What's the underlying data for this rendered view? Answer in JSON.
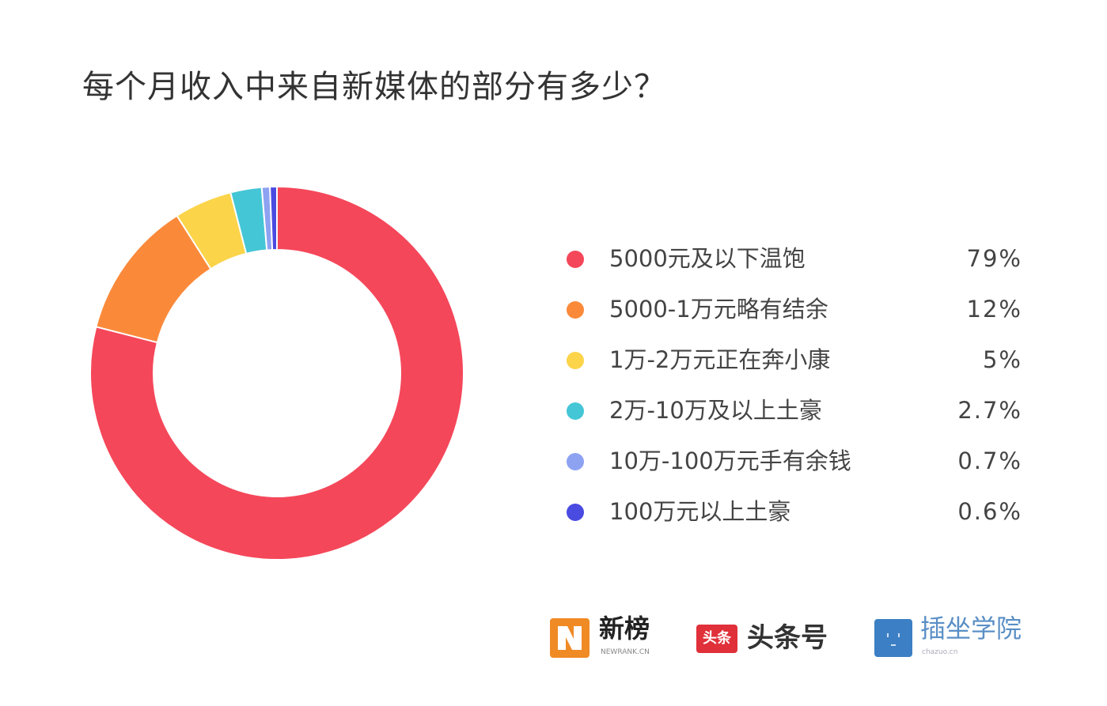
{
  "chart_data": {
    "type": "pie",
    "title": "每个月收入中来自新媒体的部分有多少？",
    "donut": true,
    "legend_position": "right",
    "slices": [
      {
        "label": "5000元及以下温饱",
        "value": 79,
        "display": "79%",
        "color": "#f5475a"
      },
      {
        "label": "5000-1万元略有结余",
        "value": 12,
        "display": "12%",
        "color": "#fa8a3a"
      },
      {
        "label": "1万-2万元正在奔小康",
        "value": 5,
        "display": "5%",
        "color": "#fbd44a"
      },
      {
        "label": "2万-10万及以上土豪",
        "value": 2.7,
        "display": "2.7%",
        "color": "#45c6d6"
      },
      {
        "label": "10万-100万元手有余钱",
        "value": 0.7,
        "display": "0.7%",
        "color": "#8ea2f2"
      },
      {
        "label": "100万元以上土豪",
        "value": 0.6,
        "display": "0.6%",
        "color": "#4a4be0"
      }
    ]
  },
  "logos": {
    "newrank": {
      "name": "新榜",
      "sub": "NEWRANK.CN",
      "color": "#f08a24"
    },
    "toutiao": {
      "badge": "头条",
      "name": "头条号",
      "color": "#e0303a"
    },
    "chazuo": {
      "name": "插坐学院",
      "sub": "chazuo.cn",
      "color": "#3c7fc4"
    }
  }
}
